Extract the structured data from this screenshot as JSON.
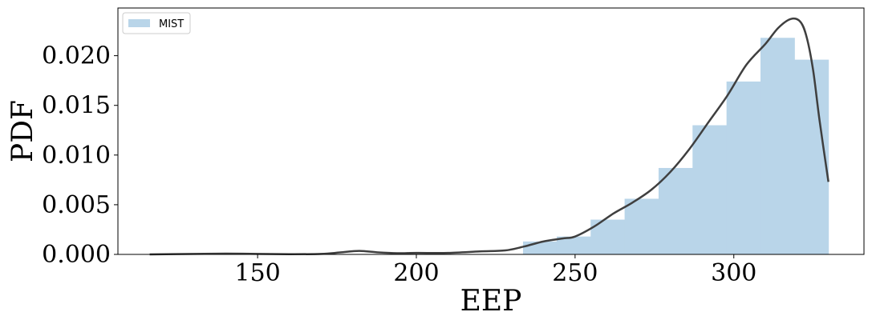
{
  "chart_data": {
    "type": "bar",
    "xlabel": "EEP",
    "ylabel": "PDF",
    "xlim": [
      106,
      341
    ],
    "ylim": [
      0,
      0.0248
    ],
    "xticks": [
      150,
      200,
      250,
      300
    ],
    "xtick_labels": [
      "150",
      "200",
      "250",
      "300"
    ],
    "yticks": [
      0,
      0.005,
      0.01,
      0.015,
      0.02
    ],
    "ytick_labels": [
      "0.000",
      "0.005",
      "0.010",
      "0.015",
      "0.020"
    ],
    "grid": false,
    "legend": {
      "placement": "top-left",
      "entries": [
        "MIST"
      ]
    },
    "series": [
      {
        "name": "MIST",
        "kind": "histogram",
        "color": "#b9d5e9",
        "bin_edges": [
          116,
          126.7,
          137.4,
          148.1,
          158.8,
          169.4,
          180.1,
          190.8,
          201.5,
          212.2,
          222.9,
          233.6,
          244.2,
          254.9,
          265.6,
          276.3,
          287.0,
          297.7,
          308.4,
          319.1,
          329.8
        ],
        "values": [
          0,
          0,
          0,
          0,
          0,
          0,
          0,
          0,
          0,
          0,
          0,
          0.0013,
          0.0018,
          0.0035,
          0.0056,
          0.0087,
          0.013,
          0.0174,
          0.0218,
          0.0196
        ]
      },
      {
        "kind": "kde",
        "color": "#3f3f3f",
        "x": [
          116,
          130,
          140,
          150,
          160,
          170,
          176,
          182,
          188,
          194,
          200,
          210,
          220,
          228,
          234,
          240,
          246,
          250,
          256,
          262,
          268,
          274,
          280,
          286,
          292,
          298,
          304,
          310,
          314,
          318,
          321,
          323,
          325,
          327,
          329.8
        ],
        "y": [
          0.0,
          5e-05,
          8e-05,
          5e-05,
          2e-05,
          5e-05,
          0.0002,
          0.00035,
          0.0002,
          0.00012,
          0.00015,
          0.00015,
          0.0003,
          0.0004,
          0.0008,
          0.0013,
          0.0016,
          0.0018,
          0.0028,
          0.0041,
          0.0052,
          0.0065,
          0.0083,
          0.0106,
          0.0133,
          0.016,
          0.0191,
          0.0212,
          0.0228,
          0.0237,
          0.0234,
          0.0218,
          0.0185,
          0.0135,
          0.0073
        ]
      }
    ]
  }
}
